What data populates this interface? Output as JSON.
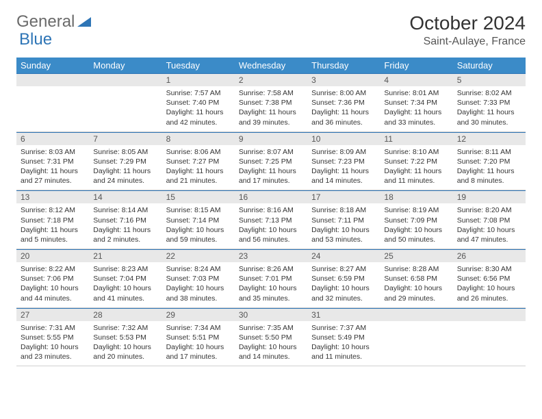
{
  "logo": {
    "part1": "General",
    "part2": "Blue"
  },
  "title": "October 2024",
  "location": "Saint-Aulaye, France",
  "colors": {
    "header_bg": "#3b8bc8",
    "header_text": "#ffffff",
    "daynum_bg": "#e8e8e8",
    "daynum_border": "#2e75b6",
    "logo_gray": "#6a6a6a",
    "logo_blue": "#2e75b6",
    "page_bg": "#ffffff"
  },
  "weekdays": [
    "Sunday",
    "Monday",
    "Tuesday",
    "Wednesday",
    "Thursday",
    "Friday",
    "Saturday"
  ],
  "weeks": [
    [
      null,
      null,
      {
        "n": "1",
        "sr": "7:57 AM",
        "ss": "7:40 PM",
        "dl": "11 hours and 42 minutes."
      },
      {
        "n": "2",
        "sr": "7:58 AM",
        "ss": "7:38 PM",
        "dl": "11 hours and 39 minutes."
      },
      {
        "n": "3",
        "sr": "8:00 AM",
        "ss": "7:36 PM",
        "dl": "11 hours and 36 minutes."
      },
      {
        "n": "4",
        "sr": "8:01 AM",
        "ss": "7:34 PM",
        "dl": "11 hours and 33 minutes."
      },
      {
        "n": "5",
        "sr": "8:02 AM",
        "ss": "7:33 PM",
        "dl": "11 hours and 30 minutes."
      }
    ],
    [
      {
        "n": "6",
        "sr": "8:03 AM",
        "ss": "7:31 PM",
        "dl": "11 hours and 27 minutes."
      },
      {
        "n": "7",
        "sr": "8:05 AM",
        "ss": "7:29 PM",
        "dl": "11 hours and 24 minutes."
      },
      {
        "n": "8",
        "sr": "8:06 AM",
        "ss": "7:27 PM",
        "dl": "11 hours and 21 minutes."
      },
      {
        "n": "9",
        "sr": "8:07 AM",
        "ss": "7:25 PM",
        "dl": "11 hours and 17 minutes."
      },
      {
        "n": "10",
        "sr": "8:09 AM",
        "ss": "7:23 PM",
        "dl": "11 hours and 14 minutes."
      },
      {
        "n": "11",
        "sr": "8:10 AM",
        "ss": "7:22 PM",
        "dl": "11 hours and 11 minutes."
      },
      {
        "n": "12",
        "sr": "8:11 AM",
        "ss": "7:20 PM",
        "dl": "11 hours and 8 minutes."
      }
    ],
    [
      {
        "n": "13",
        "sr": "8:12 AM",
        "ss": "7:18 PM",
        "dl": "11 hours and 5 minutes."
      },
      {
        "n": "14",
        "sr": "8:14 AM",
        "ss": "7:16 PM",
        "dl": "11 hours and 2 minutes."
      },
      {
        "n": "15",
        "sr": "8:15 AM",
        "ss": "7:14 PM",
        "dl": "10 hours and 59 minutes."
      },
      {
        "n": "16",
        "sr": "8:16 AM",
        "ss": "7:13 PM",
        "dl": "10 hours and 56 minutes."
      },
      {
        "n": "17",
        "sr": "8:18 AM",
        "ss": "7:11 PM",
        "dl": "10 hours and 53 minutes."
      },
      {
        "n": "18",
        "sr": "8:19 AM",
        "ss": "7:09 PM",
        "dl": "10 hours and 50 minutes."
      },
      {
        "n": "19",
        "sr": "8:20 AM",
        "ss": "7:08 PM",
        "dl": "10 hours and 47 minutes."
      }
    ],
    [
      {
        "n": "20",
        "sr": "8:22 AM",
        "ss": "7:06 PM",
        "dl": "10 hours and 44 minutes."
      },
      {
        "n": "21",
        "sr": "8:23 AM",
        "ss": "7:04 PM",
        "dl": "10 hours and 41 minutes."
      },
      {
        "n": "22",
        "sr": "8:24 AM",
        "ss": "7:03 PM",
        "dl": "10 hours and 38 minutes."
      },
      {
        "n": "23",
        "sr": "8:26 AM",
        "ss": "7:01 PM",
        "dl": "10 hours and 35 minutes."
      },
      {
        "n": "24",
        "sr": "8:27 AM",
        "ss": "6:59 PM",
        "dl": "10 hours and 32 minutes."
      },
      {
        "n": "25",
        "sr": "8:28 AM",
        "ss": "6:58 PM",
        "dl": "10 hours and 29 minutes."
      },
      {
        "n": "26",
        "sr": "8:30 AM",
        "ss": "6:56 PM",
        "dl": "10 hours and 26 minutes."
      }
    ],
    [
      {
        "n": "27",
        "sr": "7:31 AM",
        "ss": "5:55 PM",
        "dl": "10 hours and 23 minutes."
      },
      {
        "n": "28",
        "sr": "7:32 AM",
        "ss": "5:53 PM",
        "dl": "10 hours and 20 minutes."
      },
      {
        "n": "29",
        "sr": "7:34 AM",
        "ss": "5:51 PM",
        "dl": "10 hours and 17 minutes."
      },
      {
        "n": "30",
        "sr": "7:35 AM",
        "ss": "5:50 PM",
        "dl": "10 hours and 14 minutes."
      },
      {
        "n": "31",
        "sr": "7:37 AM",
        "ss": "5:49 PM",
        "dl": "10 hours and 11 minutes."
      },
      null,
      null
    ]
  ],
  "labels": {
    "sunrise": "Sunrise:",
    "sunset": "Sunset:",
    "daylight": "Daylight:"
  }
}
